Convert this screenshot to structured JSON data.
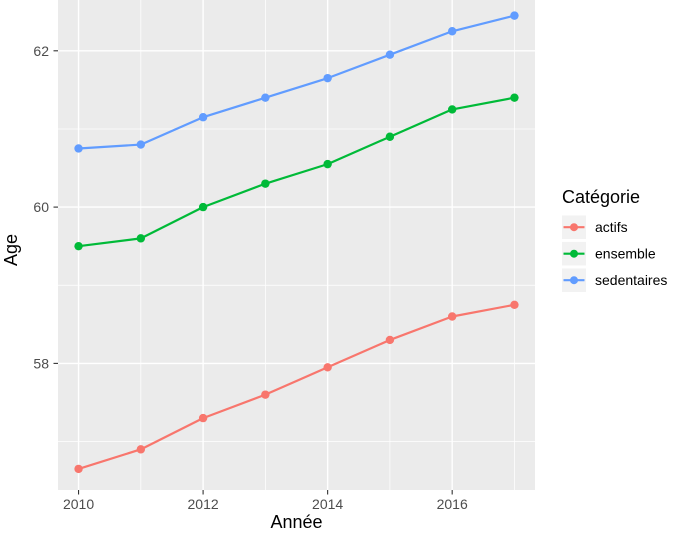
{
  "chart_data": {
    "type": "line",
    "title": "",
    "xlabel": "Année",
    "ylabel": "Age",
    "x": [
      2010,
      2011,
      2012,
      2013,
      2014,
      2015,
      2016,
      2017
    ],
    "series": [
      {
        "name": "actifs",
        "color": "#F8766D",
        "values": [
          56.65,
          56.9,
          57.3,
          57.6,
          57.95,
          58.3,
          58.6,
          58.75
        ]
      },
      {
        "name": "ensemble",
        "color": "#00BA38",
        "values": [
          59.5,
          59.6,
          60.0,
          60.3,
          60.55,
          60.9,
          61.25,
          61.4
        ]
      },
      {
        "name": "sedentaires",
        "color": "#619CFF",
        "values": [
          60.75,
          60.8,
          61.15,
          61.4,
          61.65,
          61.95,
          62.25,
          62.45
        ]
      }
    ],
    "xlim": [
      2009.67,
      2017.33
    ],
    "ylim": [
      56.38,
      62.65
    ],
    "x_major_ticks": [
      2010,
      2012,
      2014,
      2016
    ],
    "x_minor_ticks": [
      2011,
      2013,
      2015,
      2017
    ],
    "y_major_ticks": [
      58,
      60,
      62
    ],
    "y_minor_ticks": [
      57,
      59,
      61
    ],
    "grid": true,
    "legend": {
      "title": "Catégorie",
      "position": "right",
      "items": [
        "actifs",
        "ensemble",
        "sedentaires"
      ]
    }
  },
  "style": {
    "background": "#FFFFFF",
    "panel_bg": "#EBEBEB",
    "grid_color": "#FFFFFF",
    "tick_mark_color": "#333333",
    "tick_text_color": "#4D4D4D",
    "axis_title_color": "#000000",
    "legend_key_bg": "#F2F2F2"
  }
}
